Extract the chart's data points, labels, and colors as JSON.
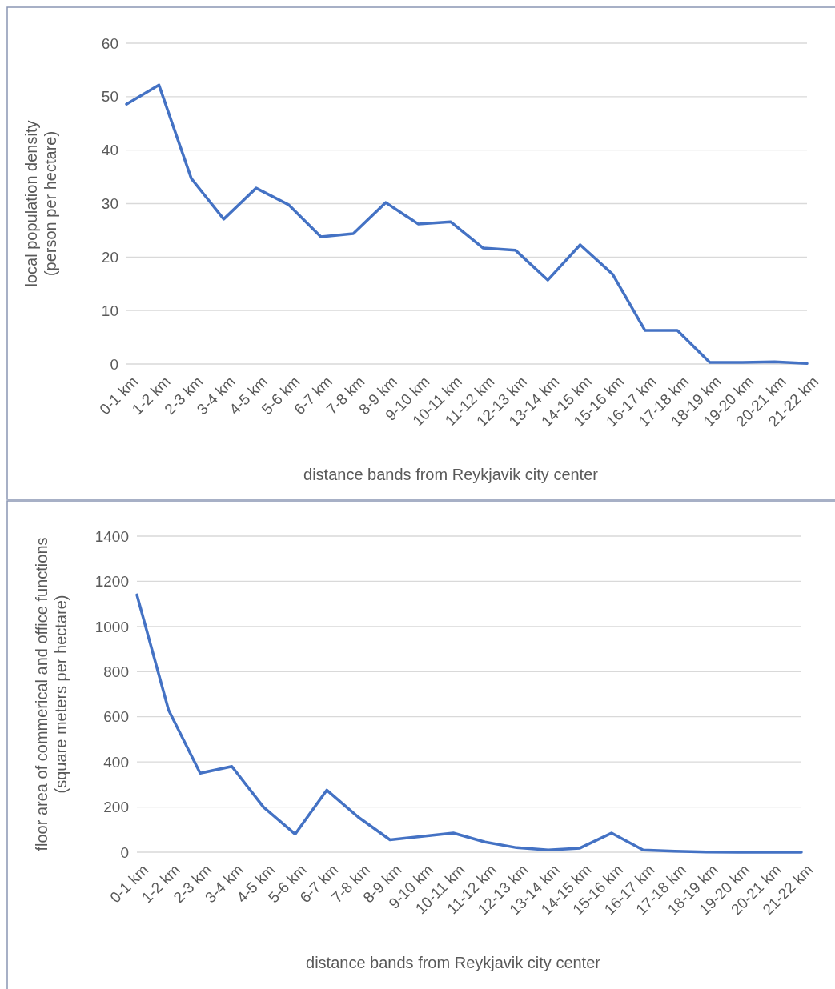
{
  "chart_data": [
    {
      "type": "line",
      "xlabel": "distance bands from Reykjavik city center",
      "ylabel": "local population density\n(person per hectare)",
      "categories": [
        "0-1 km",
        "1-2 km",
        "2-3 km",
        "3-4 km",
        "4-5 km",
        "5-6 km",
        "6-7 km",
        "7-8 km",
        "8-9 km",
        "9-10 km",
        "10-11 km",
        "11-12 km",
        "12-13 km",
        "13-14 km",
        "14-15 km",
        "15-16 km",
        "16-17 km",
        "17-18 km",
        "18-19 km",
        "19-20 km",
        "20-21 km",
        "21-22 km"
      ],
      "series": [
        {
          "color": "#4472c4",
          "values": [
            48.6,
            52.2,
            34.7,
            27.1,
            32.9,
            29.8,
            23.8,
            24.4,
            30.2,
            26.2,
            26.6,
            21.7,
            21.3,
            15.7,
            22.3,
            16.8,
            6.3,
            6.3,
            0.3,
            0.3,
            0.4,
            0.1
          ]
        }
      ],
      "ylim": [
        0,
        60
      ],
      "yticks": [
        0,
        10,
        20,
        30,
        40,
        50,
        60
      ],
      "grid": "y",
      "marker": "none",
      "line_style": "solid"
    },
    {
      "type": "line",
      "xlabel": "distance bands from Reykjavik city center",
      "ylabel": "floor area of commerical and office functions\n(square meters per hectare)",
      "categories": [
        "0-1 km",
        "1-2 km",
        "2-3 km",
        "3-4 km",
        "4-5 km",
        "5-6 km",
        "6-7 km",
        "7-8 km",
        "8-9 km",
        "9-10 km",
        "10-11 km",
        "11-12 km",
        "12-13 km",
        "13-14 km",
        "14-15 km",
        "15-16 km",
        "16-17 km",
        "17-18 km",
        "18-19 km",
        "19-20 km",
        "20-21 km",
        "21-22 km"
      ],
      "series": [
        {
          "color": "#4472c4",
          "values": [
            1140,
            630,
            350,
            380,
            200,
            80,
            275,
            155,
            55,
            70,
            85,
            45,
            20,
            10,
            18,
            85,
            10,
            4,
            1,
            0,
            0,
            0
          ]
        }
      ],
      "ylim": [
        0,
        1400
      ],
      "yticks": [
        0,
        200,
        400,
        600,
        800,
        1000,
        1200,
        1400
      ],
      "grid": "y",
      "marker": "none",
      "line_style": "solid"
    }
  ]
}
